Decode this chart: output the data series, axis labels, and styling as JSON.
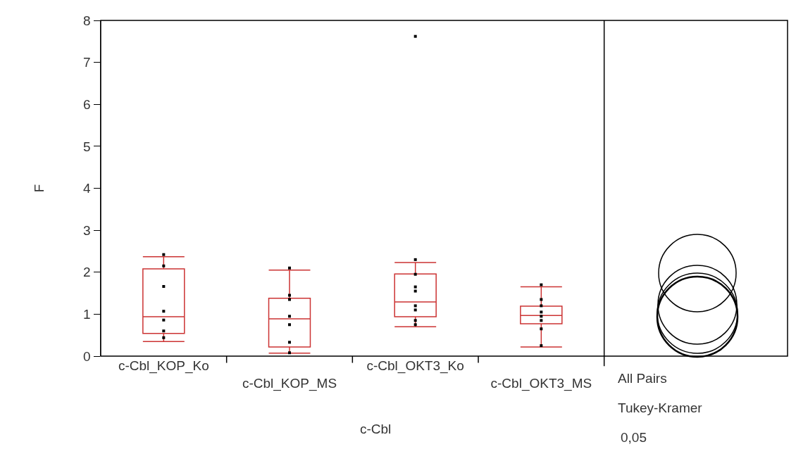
{
  "chart_data": {
    "type": "box",
    "ylabel": "F",
    "xlabel": "c-Cbl",
    "categories": [
      "c-Cbl_KOP_Ko",
      "c-Cbl_KOP_MS",
      "c-Cbl_OKT3_Ko",
      "c-Cbl_OKT3_MS"
    ],
    "ylim": [
      0,
      8
    ],
    "yticks": [
      0,
      1,
      2,
      3,
      4,
      5,
      6,
      7,
      8
    ],
    "grid": false,
    "series": [
      {
        "type": "box",
        "color": "#cc3333",
        "boxes": [
          {
            "low": 0.35,
            "q1": 0.54,
            "median": 0.94,
            "q3": 2.08,
            "high": 2.37
          },
          {
            "low": 0.07,
            "q1": 0.22,
            "median": 0.89,
            "q3": 1.38,
            "high": 2.05
          },
          {
            "low": 0.7,
            "q1": 0.94,
            "median": 1.29,
            "q3": 1.96,
            "high": 2.23,
            "outliers": [
              7.62
            ]
          },
          {
            "low": 0.22,
            "q1": 0.77,
            "median": 0.97,
            "q3": 1.19,
            "high": 1.65
          }
        ]
      },
      {
        "type": "scatter",
        "color": "#000000",
        "marker": "square",
        "x": [
          "c-Cbl_KOP_Ko",
          "c-Cbl_KOP_Ko",
          "c-Cbl_KOP_Ko",
          "c-Cbl_KOP_Ko",
          "c-Cbl_KOP_Ko",
          "c-Cbl_KOP_Ko",
          "c-Cbl_KOP_Ko",
          "c-Cbl_KOP_MS",
          "c-Cbl_KOP_MS",
          "c-Cbl_KOP_MS",
          "c-Cbl_KOP_MS",
          "c-Cbl_KOP_MS",
          "c-Cbl_KOP_MS",
          "c-Cbl_KOP_MS",
          "c-Cbl_OKT3_Ko",
          "c-Cbl_OKT3_Ko",
          "c-Cbl_OKT3_Ko",
          "c-Cbl_OKT3_Ko",
          "c-Cbl_OKT3_Ko",
          "c-Cbl_OKT3_Ko",
          "c-Cbl_OKT3_Ko",
          "c-Cbl_OKT3_Ko",
          "c-Cbl_OKT3_MS",
          "c-Cbl_OKT3_MS",
          "c-Cbl_OKT3_MS",
          "c-Cbl_OKT3_MS",
          "c-Cbl_OKT3_MS",
          "c-Cbl_OKT3_MS",
          "c-Cbl_OKT3_MS",
          "c-Cbl_OKT3_MS"
        ],
        "values": [
          2.42,
          2.15,
          1.66,
          1.07,
          0.86,
          0.6,
          0.44,
          2.1,
          1.45,
          1.35,
          0.95,
          0.75,
          0.33,
          0.08,
          2.3,
          1.95,
          1.65,
          1.55,
          1.2,
          1.1,
          0.85,
          0.75,
          1.7,
          1.35,
          1.2,
          1.05,
          0.95,
          0.85,
          0.65,
          0.25
        ]
      }
    ],
    "annotations": [
      "All Pairs",
      "Tukey-Kramer",
      "0,05"
    ]
  }
}
